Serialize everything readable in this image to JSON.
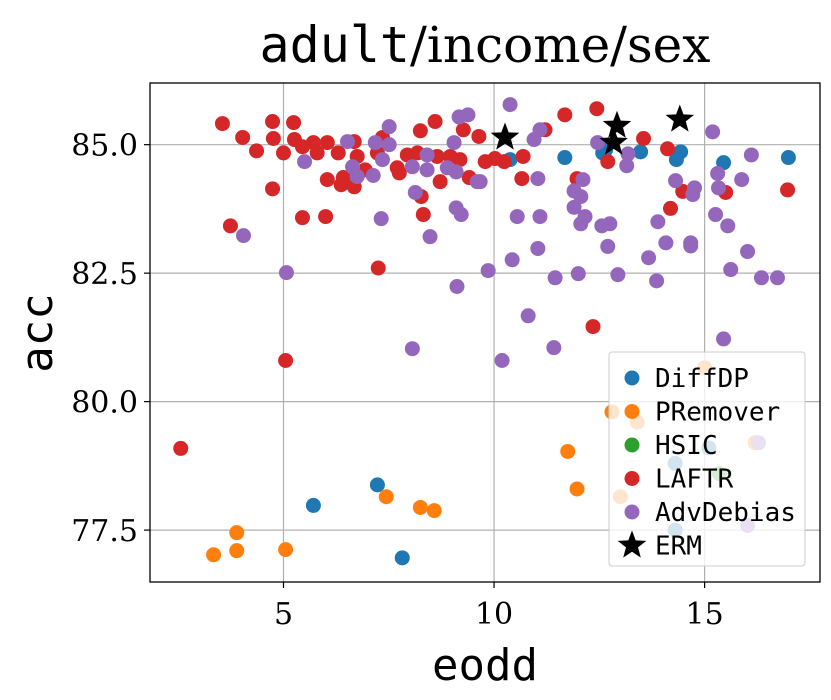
{
  "chart_data": {
    "type": "scatter",
    "title_parts": [
      "adult",
      "/income/sex"
    ],
    "xlabel": "eodd",
    "ylabel": "acc",
    "xlim": [
      1.83,
      17.74
    ],
    "ylim": [
      76.49,
      86.2
    ],
    "xticks": [
      5,
      10,
      15
    ],
    "xtick_labels": [
      "5",
      "10",
      "15"
    ],
    "yticks": [
      77.5,
      80.0,
      82.5,
      85.0
    ],
    "ytick_labels": [
      "77.5",
      "80.0",
      "82.5",
      "85.0"
    ],
    "grid": true,
    "legend_placement": "lower-right",
    "series": [
      {
        "name": "DiffDP",
        "color": "#1f77b4",
        "marker": "circle",
        "x": [
          7.23,
          5.71,
          7.82,
          10.38,
          11.68,
          12.58,
          13.48,
          14.43,
          14.33,
          15.45,
          16.99,
          12.65,
          14.3,
          14.3,
          15.1
        ],
        "y": [
          78.38,
          77.98,
          76.96,
          84.71,
          84.75,
          84.84,
          84.86,
          84.86,
          84.71,
          84.65,
          84.75,
          84.9,
          78.8,
          77.5,
          79.1
        ]
      },
      {
        "name": "PRemover",
        "color": "#ff7f0e",
        "marker": "circle",
        "x": [
          3.34,
          3.89,
          3.89,
          5.05,
          7.44,
          8.25,
          8.58,
          11.75,
          11.97,
          12.8,
          13.4,
          15.0,
          16.2,
          13.0
        ],
        "y": [
          77.02,
          77.45,
          77.1,
          77.12,
          78.15,
          77.94,
          77.88,
          79.03,
          78.3,
          79.8,
          79.6,
          80.66,
          79.2,
          78.15
        ]
      },
      {
        "name": "HSIC",
        "color": "#2ca02c",
        "marker": "circle",
        "x": [
          15.35
        ],
        "y": [
          78.6
        ]
      },
      {
        "name": "LAFTR",
        "color": "#d62728",
        "marker": "circle",
        "x": [
          3.55,
          4.03,
          4.36,
          4.74,
          4.76,
          5.0,
          5.24,
          5.26,
          5.45,
          5.71,
          5.8,
          6.04,
          6.3,
          6.68,
          6.75,
          6.94,
          6.42,
          6.04,
          6.37,
          6.68,
          7.23,
          7.35,
          7.7,
          7.75,
          7.94,
          8.18,
          8.25,
          8.6,
          8.65,
          8.72,
          8.96,
          9.19,
          9.27,
          9.64,
          9.41,
          9.79,
          8.27,
          8.32,
          4.74,
          3.74,
          5.45,
          6.0,
          7.25,
          5.05,
          2.56,
          10.02,
          10.24,
          10.69,
          10.66,
          11.21,
          11.68,
          12.44,
          12.7,
          13.55,
          14.12,
          14.48,
          14.19,
          15.5,
          16.97,
          11.97,
          12.35
        ],
        "y": [
          85.41,
          85.14,
          84.88,
          85.45,
          85.12,
          84.84,
          85.43,
          85.1,
          84.96,
          85.04,
          84.84,
          85.04,
          84.84,
          85.06,
          84.77,
          84.51,
          84.36,
          84.32,
          84.22,
          84.18,
          84.84,
          85.14,
          84.55,
          84.45,
          84.8,
          84.84,
          85.27,
          85.45,
          84.77,
          84.28,
          84.77,
          84.71,
          85.29,
          85.16,
          84.36,
          84.67,
          83.99,
          83.64,
          84.14,
          83.42,
          83.58,
          83.6,
          82.6,
          80.8,
          79.09,
          84.73,
          84.67,
          84.77,
          84.34,
          85.29,
          85.58,
          85.7,
          84.67,
          85.12,
          84.92,
          84.09,
          83.76,
          84.07,
          84.12,
          84.34,
          81.46
        ]
      },
      {
        "name": "AdvDebias",
        "color": "#9467bd",
        "marker": "circle",
        "x": [
          6.52,
          7.18,
          7.51,
          7.51,
          7.35,
          6.64,
          6.75,
          7.13,
          5.5,
          8.06,
          8.41,
          8.41,
          8.89,
          9.1,
          9.05,
          9.17,
          9.38,
          9.6,
          8.13,
          9.1,
          9.22,
          8.48,
          7.32,
          4.05,
          5.07,
          9.86,
          9.12,
          10.38,
          11.09,
          10.95,
          12.46,
          13.18,
          13.15,
          9.67,
          11.04,
          12.11,
          11.9,
          12.06,
          11.9,
          12.16,
          12.06,
          12.56,
          12.75,
          10.55,
          11.09,
          12.7,
          11.04,
          10.43,
          11.45,
          12.0,
          12.94,
          13.86,
          13.67,
          14.08,
          13.89,
          14.67,
          14.67,
          14.31,
          14.76,
          14.72,
          15.19,
          16.11,
          15.31,
          15.33,
          15.88,
          15.26,
          15.55,
          16.02,
          15.62,
          16.35,
          16.73,
          10.81,
          11.42,
          10.19,
          15.45,
          8.06,
          16.28,
          16.02
        ],
        "y": [
          85.06,
          85.04,
          85.35,
          85.0,
          84.71,
          84.57,
          84.38,
          84.4,
          84.67,
          84.57,
          84.51,
          84.8,
          84.55,
          84.47,
          85.04,
          85.54,
          85.58,
          84.28,
          84.07,
          83.77,
          83.64,
          83.21,
          83.56,
          83.23,
          82.51,
          82.55,
          82.24,
          85.78,
          85.29,
          85.1,
          85.04,
          84.82,
          84.59,
          84.28,
          84.34,
          84.32,
          84.1,
          83.99,
          83.78,
          83.6,
          83.46,
          83.42,
          83.46,
          83.6,
          83.6,
          83.02,
          82.98,
          82.76,
          82.41,
          82.49,
          82.47,
          82.35,
          82.8,
          83.09,
          83.5,
          83.09,
          83.03,
          84.3,
          84.16,
          84.03,
          85.25,
          84.8,
          84.44,
          84.16,
          84.32,
          83.64,
          83.42,
          82.92,
          82.57,
          82.41,
          82.41,
          81.67,
          81.05,
          80.8,
          81.22,
          81.03,
          79.2,
          77.59
        ]
      },
      {
        "name": "ERM",
        "color": "#000000",
        "marker": "star",
        "x": [
          10.26,
          12.92,
          12.84,
          14.41
        ],
        "y": [
          85.14,
          85.37,
          85.04,
          85.49
        ]
      }
    ]
  }
}
